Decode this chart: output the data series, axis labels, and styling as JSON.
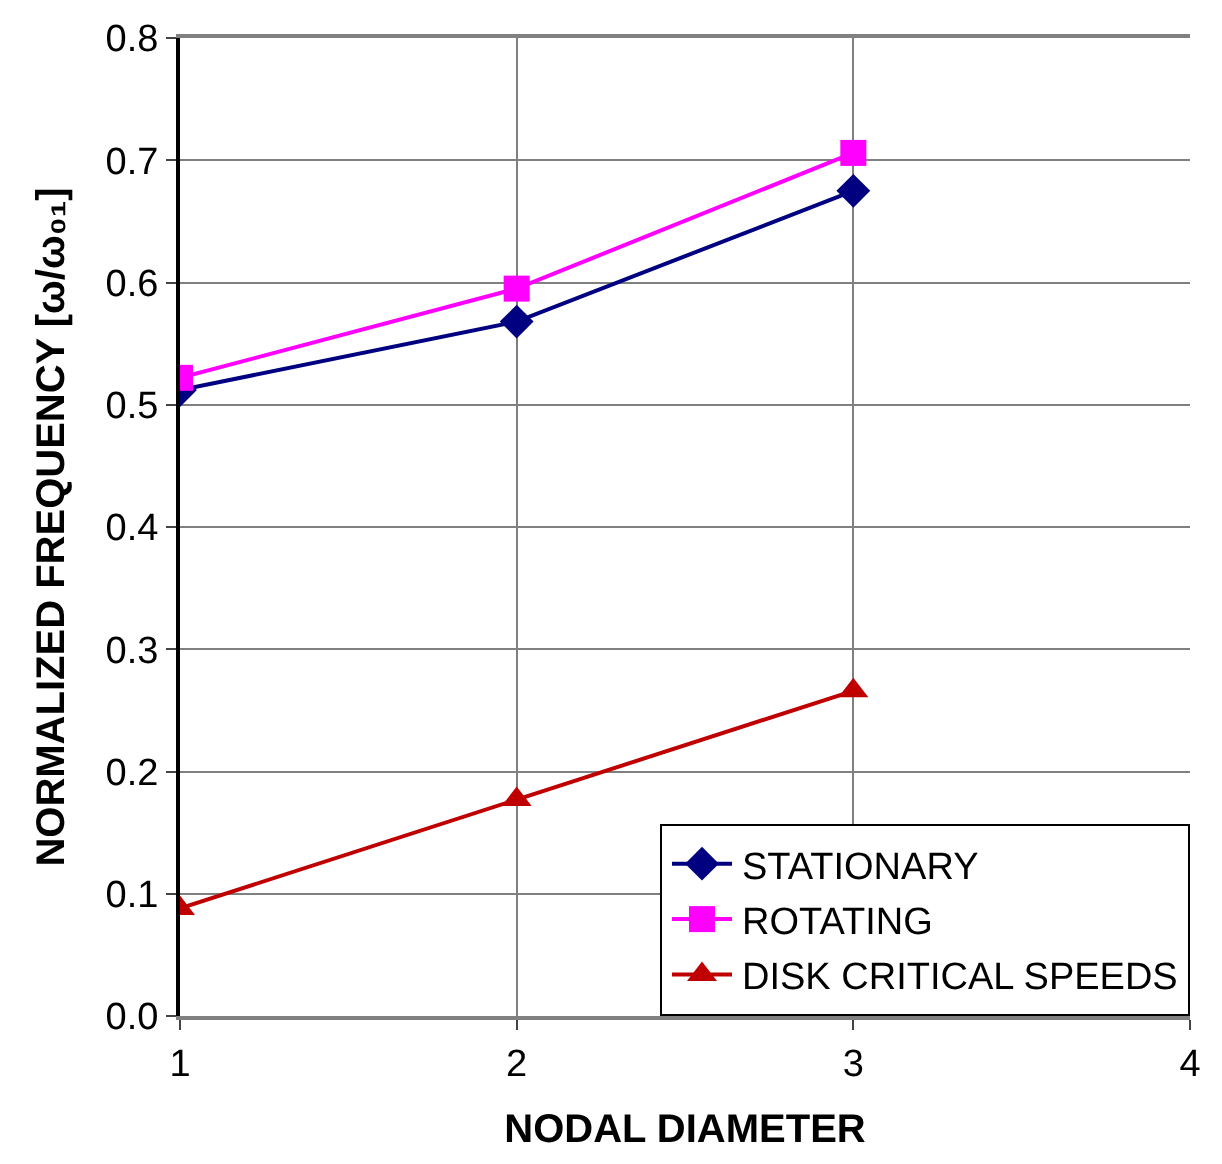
{
  "chart_data": {
    "type": "line",
    "xlabel": "NODAL DIAMETER",
    "ylabel": "NORMALIZED FREQUENCY [ω/ω₀₁]",
    "x": [
      1,
      2,
      3
    ],
    "series": [
      {
        "name": "STATIONARY",
        "color": "#000080",
        "marker": "diamond",
        "values": [
          0.512,
          0.568,
          0.675
        ]
      },
      {
        "name": "ROTATING",
        "color": "#ff00ff",
        "marker": "square",
        "values": [
          0.522,
          0.595,
          0.706
        ]
      },
      {
        "name": "DISK CRITICAL SPEEDS",
        "color": "#c00000",
        "marker": "triangle",
        "values": [
          0.088,
          0.177,
          0.266
        ]
      }
    ],
    "xlim": [
      1,
      4
    ],
    "xticks": [
      1,
      2,
      3,
      4
    ],
    "ylim": [
      0,
      0.8
    ],
    "yticks": [
      {
        "value": 0,
        "label": "0.0"
      },
      0.1,
      0.2,
      0.3,
      0.4,
      0.5,
      0.6,
      0.7,
      0.8
    ],
    "grid": true,
    "legend": "bottom right",
    "line_style": "solid"
  }
}
